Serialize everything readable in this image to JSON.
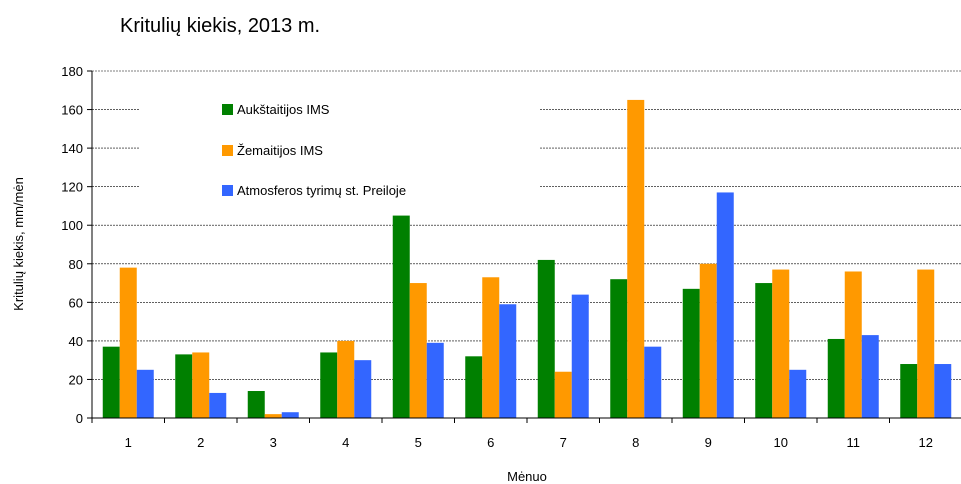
{
  "chart_data": {
    "type": "bar",
    "title": "Kritulių kiekis, 2013 m.",
    "xlabel": "Mėnuo",
    "ylabel": "Kritulių kiekis, mm/mėn",
    "ylim": [
      0,
      180
    ],
    "yticks": [
      0,
      20,
      40,
      60,
      80,
      100,
      120,
      140,
      160,
      180
    ],
    "grid": true,
    "legend_position": "top-left",
    "categories": [
      "1",
      "2",
      "3",
      "4",
      "5",
      "6",
      "7",
      "8",
      "9",
      "10",
      "11",
      "12"
    ],
    "series": [
      {
        "name": "Aukštaitijos IMS",
        "color": "#008000",
        "values": [
          37,
          33,
          14,
          34,
          105,
          32,
          82,
          72,
          67,
          70,
          41,
          28
        ]
      },
      {
        "name": "Žemaitijos IMS",
        "color": "#FF9900",
        "values": [
          78,
          34,
          2,
          40,
          70,
          73,
          24,
          165,
          80,
          77,
          76,
          77
        ]
      },
      {
        "name": "Atmosferos tyrimų st. Preiloje",
        "color": "#3366FF",
        "values": [
          25,
          13,
          3,
          30,
          39,
          59,
          64,
          37,
          117,
          25,
          43,
          28
        ]
      }
    ]
  }
}
